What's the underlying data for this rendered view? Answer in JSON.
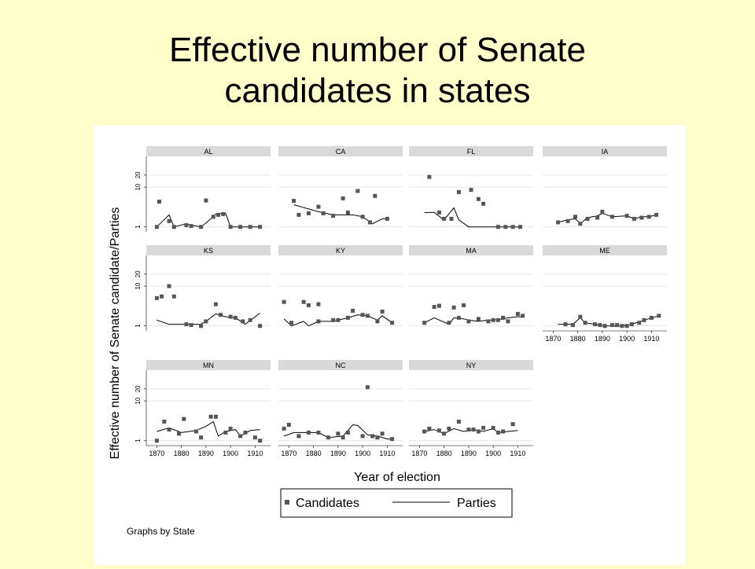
{
  "slide": {
    "title_line1": "Effective number of Senate",
    "title_line2": "candidates in states"
  },
  "chart_data": {
    "type": "scatter",
    "title": "",
    "xlabel": "Year of election",
    "ylabel": "Effective number of Senate candidate/Parties",
    "x_ticks": [
      1870,
      1880,
      1890,
      1900,
      1910
    ],
    "y_ticks": [
      1,
      10,
      20
    ],
    "y_scale": "log",
    "xlim": [
      1867,
      1915
    ],
    "ylim": [
      0.9,
      45
    ],
    "grid": true,
    "legend": {
      "items": [
        "Candidates",
        "Parties"
      ],
      "position": "bottom-center"
    },
    "note": "Graphs by State",
    "colors": {
      "candidates": "#555555",
      "parties": "#000000",
      "strip": "#d9d9d9",
      "grid": "#e6e6e6"
    },
    "panels": [
      {
        "state": "AL",
        "candidates": [
          [
            1870,
            1
          ],
          [
            1871,
            4.3
          ],
          [
            1875,
            1.4
          ],
          [
            1877,
            1
          ],
          [
            1882,
            1.1
          ],
          [
            1884,
            1.05
          ],
          [
            1888,
            1
          ],
          [
            1890,
            4.6
          ],
          [
            1893,
            1.8
          ],
          [
            1895,
            2
          ],
          [
            1897,
            2.1
          ],
          [
            1900,
            1
          ],
          [
            1904,
            1
          ],
          [
            1908,
            1
          ],
          [
            1912,
            1
          ]
        ],
        "parties": [
          [
            1870,
            1
          ],
          [
            1875,
            2
          ],
          [
            1877,
            1
          ],
          [
            1882,
            1.2
          ],
          [
            1884,
            1.1
          ],
          [
            1888,
            1
          ],
          [
            1892,
            1.6
          ],
          [
            1894,
            2.1
          ],
          [
            1898,
            2.2
          ],
          [
            1900,
            1
          ],
          [
            1904,
            1
          ],
          [
            1908,
            1
          ],
          [
            1912,
            1
          ]
        ]
      },
      {
        "state": "CA",
        "candidates": [
          [
            1872,
            4.5
          ],
          [
            1874,
            2
          ],
          [
            1878,
            2.2
          ],
          [
            1882,
            3.2
          ],
          [
            1884,
            2.2
          ],
          [
            1888,
            1.9
          ],
          [
            1892,
            5.2
          ],
          [
            1894,
            2.3
          ],
          [
            1898,
            8
          ],
          [
            1900,
            1.8
          ],
          [
            1903,
            1.3
          ],
          [
            1905,
            6
          ],
          [
            1910,
            1.6
          ]
        ],
        "parties": [
          [
            1872,
            3.6
          ],
          [
            1882,
            2.4
          ],
          [
            1888,
            2
          ],
          [
            1896,
            2
          ],
          [
            1900,
            1.8
          ],
          [
            1904,
            1.2
          ],
          [
            1908,
            1.6
          ],
          [
            1910,
            1.6
          ]
        ]
      },
      {
        "state": "FL",
        "candidates": [
          [
            1874,
            18
          ],
          [
            1878,
            2.3
          ],
          [
            1880,
            1.6
          ],
          [
            1883,
            1.6
          ],
          [
            1886,
            7.5
          ],
          [
            1891,
            8.5
          ],
          [
            1894,
            5
          ],
          [
            1896,
            3.8
          ],
          [
            1902,
            1
          ],
          [
            1905,
            1
          ],
          [
            1908,
            1
          ],
          [
            1911,
            1
          ]
        ],
        "parties": [
          [
            1872,
            2.3
          ],
          [
            1876,
            2.3
          ],
          [
            1880,
            1.5
          ],
          [
            1884,
            3
          ],
          [
            1886,
            1.5
          ],
          [
            1890,
            1
          ],
          [
            1900,
            1
          ],
          [
            1911,
            1
          ]
        ]
      },
      {
        "state": "IA",
        "candidates": [
          [
            1872,
            1.3
          ],
          [
            1876,
            1.4
          ],
          [
            1879,
            1.8
          ],
          [
            1881,
            1.2
          ],
          [
            1884,
            1.6
          ],
          [
            1888,
            1.7
          ],
          [
            1890,
            2.4
          ],
          [
            1894,
            1.8
          ],
          [
            1900,
            1.9
          ],
          [
            1903,
            1.6
          ],
          [
            1906,
            1.7
          ],
          [
            1909,
            1.8
          ],
          [
            1912,
            2
          ]
        ],
        "parties": [
          [
            1872,
            1.3
          ],
          [
            1876,
            1.5
          ],
          [
            1879,
            1.6
          ],
          [
            1881,
            1.2
          ],
          [
            1884,
            1.7
          ],
          [
            1888,
            1.9
          ],
          [
            1890,
            2.2
          ],
          [
            1894,
            1.8
          ],
          [
            1900,
            1.9
          ],
          [
            1903,
            1.6
          ],
          [
            1906,
            1.8
          ],
          [
            1909,
            1.8
          ],
          [
            1912,
            2
          ]
        ]
      },
      {
        "state": "KS",
        "candidates": [
          [
            1870,
            5
          ],
          [
            1872,
            5.5
          ],
          [
            1875,
            10
          ],
          [
            1877,
            5.5
          ],
          [
            1882,
            1.1
          ],
          [
            1884,
            1.05
          ],
          [
            1888,
            1
          ],
          [
            1890,
            1.3
          ],
          [
            1894,
            3.5
          ],
          [
            1896,
            1.9
          ],
          [
            1900,
            1.7
          ],
          [
            1902,
            1.6
          ],
          [
            1905,
            1.3
          ],
          [
            1908,
            1.4
          ],
          [
            1912,
            1
          ]
        ],
        "parties": [
          [
            1870,
            1.4
          ],
          [
            1875,
            1.1
          ],
          [
            1882,
            1.1
          ],
          [
            1888,
            1.1
          ],
          [
            1890,
            1.3
          ],
          [
            1894,
            2
          ],
          [
            1898,
            1.7
          ],
          [
            1902,
            1.6
          ],
          [
            1906,
            1.1
          ],
          [
            1912,
            2.1
          ]
        ]
      },
      {
        "state": "KY",
        "candidates": [
          [
            1868,
            4
          ],
          [
            1871,
            1.2
          ],
          [
            1876,
            4
          ],
          [
            1878,
            3.3
          ],
          [
            1882,
            3.5
          ],
          [
            1882,
            1.3
          ],
          [
            1888,
            1.4
          ],
          [
            1890,
            1.4
          ],
          [
            1894,
            1.6
          ],
          [
            1896,
            2.4
          ],
          [
            1900,
            1.9
          ],
          [
            1902,
            1.8
          ],
          [
            1906,
            1.3
          ],
          [
            1908,
            2.3
          ],
          [
            1912,
            1.2
          ]
        ],
        "parties": [
          [
            1868,
            1.5
          ],
          [
            1871,
            1
          ],
          [
            1876,
            1.3
          ],
          [
            1878,
            1
          ],
          [
            1882,
            1.3
          ],
          [
            1888,
            1.3
          ],
          [
            1894,
            1.6
          ],
          [
            1898,
            1.9
          ],
          [
            1902,
            1.8
          ],
          [
            1906,
            1.4
          ],
          [
            1908,
            1.8
          ],
          [
            1912,
            1.2
          ]
        ]
      },
      {
        "state": "MA",
        "candidates": [
          [
            1872,
            1.2
          ],
          [
            1876,
            3
          ],
          [
            1878,
            3.2
          ],
          [
            1882,
            1.2
          ],
          [
            1884,
            2.9
          ],
          [
            1886,
            1.6
          ],
          [
            1888,
            3.3
          ],
          [
            1890,
            1.3
          ],
          [
            1894,
            1.5
          ],
          [
            1898,
            1.3
          ],
          [
            1900,
            1.4
          ],
          [
            1902,
            1.4
          ],
          [
            1904,
            1.6
          ],
          [
            1906,
            1.3
          ],
          [
            1910,
            2
          ],
          [
            1912,
            1.8
          ]
        ],
        "parties": [
          [
            1872,
            1.2
          ],
          [
            1876,
            1.6
          ],
          [
            1882,
            1.1
          ],
          [
            1884,
            1.6
          ],
          [
            1888,
            1.5
          ],
          [
            1890,
            1.4
          ],
          [
            1894,
            1.3
          ],
          [
            1898,
            1.4
          ],
          [
            1900,
            1.4
          ],
          [
            1904,
            1.5
          ],
          [
            1906,
            1.6
          ],
          [
            1910,
            1.7
          ],
          [
            1912,
            1.7
          ]
        ]
      },
      {
        "state": "ME",
        "candidates": [
          [
            1875,
            1.1
          ],
          [
            1878,
            1.05
          ],
          [
            1881,
            1.7
          ],
          [
            1883,
            1.2
          ],
          [
            1887,
            1.1
          ],
          [
            1889,
            1.05
          ],
          [
            1891,
            1
          ],
          [
            1894,
            1.05
          ],
          [
            1896,
            1.05
          ],
          [
            1898,
            1
          ],
          [
            1900,
            1
          ],
          [
            1902,
            1.1
          ],
          [
            1905,
            1.2
          ],
          [
            1907,
            1.4
          ],
          [
            1910,
            1.6
          ],
          [
            1913,
            1.8
          ]
        ],
        "parties": [
          [
            1872,
            1.1
          ],
          [
            1878,
            1.1
          ],
          [
            1881,
            1.6
          ],
          [
            1883,
            1.2
          ],
          [
            1887,
            1.1
          ],
          [
            1891,
            1
          ],
          [
            1898,
            1
          ],
          [
            1902,
            1.1
          ],
          [
            1907,
            1.4
          ],
          [
            1913,
            1.8
          ]
        ]
      },
      {
        "state": "MN",
        "candidates": [
          [
            1870,
            1
          ],
          [
            1873,
            3
          ],
          [
            1875,
            1.9
          ],
          [
            1879,
            1.5
          ],
          [
            1881,
            3.5
          ],
          [
            1886,
            1.7
          ],
          [
            1888,
            1.2
          ],
          [
            1892,
            4
          ],
          [
            1894,
            4
          ],
          [
            1898,
            1.6
          ],
          [
            1900,
            2
          ],
          [
            1904,
            1.3
          ],
          [
            1906,
            1.6
          ],
          [
            1910,
            1.2
          ],
          [
            1912,
            1
          ]
        ],
        "parties": [
          [
            1870,
            1.7
          ],
          [
            1875,
            2.1
          ],
          [
            1880,
            1.6
          ],
          [
            1886,
            1.8
          ],
          [
            1890,
            2.3
          ],
          [
            1893,
            3
          ],
          [
            1895,
            1.3
          ],
          [
            1898,
            1.7
          ],
          [
            1902,
            1.9
          ],
          [
            1904,
            1.3
          ],
          [
            1908,
            1.8
          ],
          [
            1912,
            1.9
          ]
        ]
      },
      {
        "state": "NC",
        "candidates": [
          [
            1868,
            2
          ],
          [
            1870,
            2.5
          ],
          [
            1874,
            1.3
          ],
          [
            1878,
            1.6
          ],
          [
            1882,
            1.6
          ],
          [
            1886,
            1.2
          ],
          [
            1890,
            1.5
          ],
          [
            1892,
            1.2
          ],
          [
            1894,
            1.6
          ],
          [
            1900,
            1.3
          ],
          [
            1902,
            22
          ],
          [
            1904,
            1.3
          ],
          [
            1906,
            1.2
          ],
          [
            1908,
            1.5
          ],
          [
            1912,
            1.1
          ]
        ],
        "parties": [
          [
            1868,
            1.3
          ],
          [
            1872,
            1.6
          ],
          [
            1878,
            1.6
          ],
          [
            1882,
            1.6
          ],
          [
            1886,
            1.2
          ],
          [
            1892,
            1.3
          ],
          [
            1896,
            2.5
          ],
          [
            1898,
            2.4
          ],
          [
            1902,
            1.4
          ],
          [
            1906,
            1.3
          ],
          [
            1910,
            1.1
          ],
          [
            1912,
            1.1
          ]
        ]
      },
      {
        "state": "NY",
        "candidates": [
          [
            1872,
            1.7
          ],
          [
            1874,
            2
          ],
          [
            1878,
            1.8
          ],
          [
            1880,
            1.5
          ],
          [
            1882,
            2
          ],
          [
            1886,
            3
          ],
          [
            1890,
            1.9
          ],
          [
            1892,
            1.9
          ],
          [
            1894,
            1.7
          ],
          [
            1896,
            2.1
          ],
          [
            1900,
            2.1
          ],
          [
            1902,
            1.6
          ],
          [
            1904,
            1.7
          ],
          [
            1908,
            2.6
          ]
        ],
        "parties": [
          [
            1872,
            1.7
          ],
          [
            1876,
            1.9
          ],
          [
            1880,
            1.5
          ],
          [
            1884,
            2
          ],
          [
            1888,
            1.7
          ],
          [
            1892,
            1.9
          ],
          [
            1896,
            1.7
          ],
          [
            1900,
            2
          ],
          [
            1902,
            1.6
          ],
          [
            1906,
            1.7
          ],
          [
            1910,
            1.8
          ]
        ]
      }
    ]
  }
}
